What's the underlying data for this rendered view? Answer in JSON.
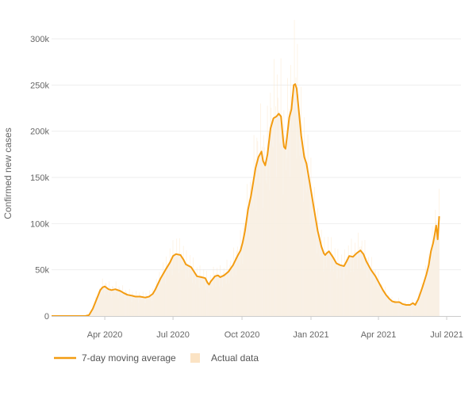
{
  "chart_data": {
    "type": "line",
    "title": "",
    "xlabel": "",
    "ylabel": "Confirmed new cases",
    "x_ticks": [
      "Apr 2020",
      "Jul 2020",
      "Oct 2020",
      "Jan 2021",
      "Apr 2021",
      "Jul 2021"
    ],
    "x_tick_days": [
      71,
      162,
      254,
      346,
      436,
      527
    ],
    "x_range_days": [
      0,
      546
    ],
    "x_origin_date": "2020-01-21",
    "y_ticks": [
      0,
      50000,
      100000,
      150000,
      200000,
      250000,
      300000
    ],
    "y_tick_labels": [
      "0",
      "50k",
      "100k",
      "150k",
      "200k",
      "250k",
      "300k"
    ],
    "ylim": [
      0,
      300000
    ],
    "grid": true,
    "legend_position": "bottom-left",
    "colors": {
      "line": "#f39c12",
      "bars": "#fbe3c4",
      "grid": "#eeeeee",
      "axis": "#cccccc"
    },
    "series": [
      {
        "name": "7-day moving average",
        "kind": "line",
        "points": [
          [
            0,
            0
          ],
          [
            45,
            0
          ],
          [
            50,
            1000
          ],
          [
            55,
            8000
          ],
          [
            60,
            18000
          ],
          [
            65,
            28000
          ],
          [
            68,
            31000
          ],
          [
            71,
            32000
          ],
          [
            76,
            29000
          ],
          [
            80,
            28000
          ],
          [
            85,
            29000
          ],
          [
            92,
            27000
          ],
          [
            96,
            25000
          ],
          [
            101,
            23000
          ],
          [
            107,
            22000
          ],
          [
            112,
            21000
          ],
          [
            118,
            21000
          ],
          [
            125,
            20000
          ],
          [
            130,
            21000
          ],
          [
            135,
            24000
          ],
          [
            138,
            28000
          ],
          [
            145,
            40000
          ],
          [
            152,
            50000
          ],
          [
            158,
            58000
          ],
          [
            162,
            65000
          ],
          [
            166,
            67000
          ],
          [
            172,
            66000
          ],
          [
            176,
            61000
          ],
          [
            179,
            56000
          ],
          [
            186,
            53000
          ],
          [
            190,
            48000
          ],
          [
            194,
            43000
          ],
          [
            200,
            42000
          ],
          [
            205,
            41000
          ],
          [
            208,
            36000
          ],
          [
            210,
            34000
          ],
          [
            212,
            37000
          ],
          [
            218,
            43000
          ],
          [
            222,
            44000
          ],
          [
            225,
            42000
          ],
          [
            230,
            44000
          ],
          [
            236,
            48000
          ],
          [
            242,
            55000
          ],
          [
            248,
            65000
          ],
          [
            252,
            71000
          ],
          [
            255,
            80000
          ],
          [
            258,
            92000
          ],
          [
            262,
            115000
          ],
          [
            266,
            130000
          ],
          [
            272,
            160000
          ],
          [
            276,
            172000
          ],
          [
            280,
            178000
          ],
          [
            282,
            168000
          ],
          [
            285,
            163000
          ],
          [
            288,
            175000
          ],
          [
            292,
            203000
          ],
          [
            296,
            214000
          ],
          [
            300,
            216000
          ],
          [
            303,
            219000
          ],
          [
            306,
            216000
          ],
          [
            309,
            190000
          ],
          [
            310,
            183000
          ],
          [
            312,
            181000
          ],
          [
            314,
            193000
          ],
          [
            317,
            215000
          ],
          [
            320,
            224000
          ],
          [
            323,
            250000
          ],
          [
            325,
            251000
          ],
          [
            327,
            246000
          ],
          [
            330,
            220000
          ],
          [
            333,
            195000
          ],
          [
            337,
            172000
          ],
          [
            340,
            165000
          ],
          [
            345,
            141000
          ],
          [
            350,
            116000
          ],
          [
            355,
            92000
          ],
          [
            360,
            75000
          ],
          [
            363,
            68000
          ],
          [
            365,
            66000
          ],
          [
            367,
            68000
          ],
          [
            370,
            70000
          ],
          [
            375,
            64000
          ],
          [
            380,
            57000
          ],
          [
            385,
            55000
          ],
          [
            390,
            54000
          ],
          [
            394,
            60000
          ],
          [
            397,
            65000
          ],
          [
            402,
            64000
          ],
          [
            407,
            68000
          ],
          [
            412,
            71000
          ],
          [
            416,
            67000
          ],
          [
            420,
            59000
          ],
          [
            426,
            50000
          ],
          [
            432,
            43000
          ],
          [
            438,
            34000
          ],
          [
            442,
            28000
          ],
          [
            446,
            23000
          ],
          [
            450,
            19000
          ],
          [
            454,
            16000
          ],
          [
            458,
            15000
          ],
          [
            464,
            15000
          ],
          [
            468,
            13000
          ],
          [
            473,
            12000
          ],
          [
            478,
            12000
          ],
          [
            482,
            14000
          ],
          [
            485,
            12000
          ],
          [
            489,
            18000
          ],
          [
            492,
            25000
          ],
          [
            495,
            32000
          ],
          [
            500,
            45000
          ],
          [
            503,
            55000
          ],
          [
            506,
            70000
          ],
          [
            509,
            79000
          ],
          [
            511,
            88000
          ],
          [
            513,
            98000
          ],
          [
            514,
            91000
          ],
          [
            515,
            83000
          ],
          [
            517,
            108000
          ]
        ]
      },
      {
        "name": "Actual data",
        "kind": "bar",
        "points": []
      }
    ]
  },
  "legend": {
    "items": [
      {
        "label": "7-day moving average",
        "swatch": "line"
      },
      {
        "label": "Actual data",
        "swatch": "bar"
      }
    ]
  }
}
